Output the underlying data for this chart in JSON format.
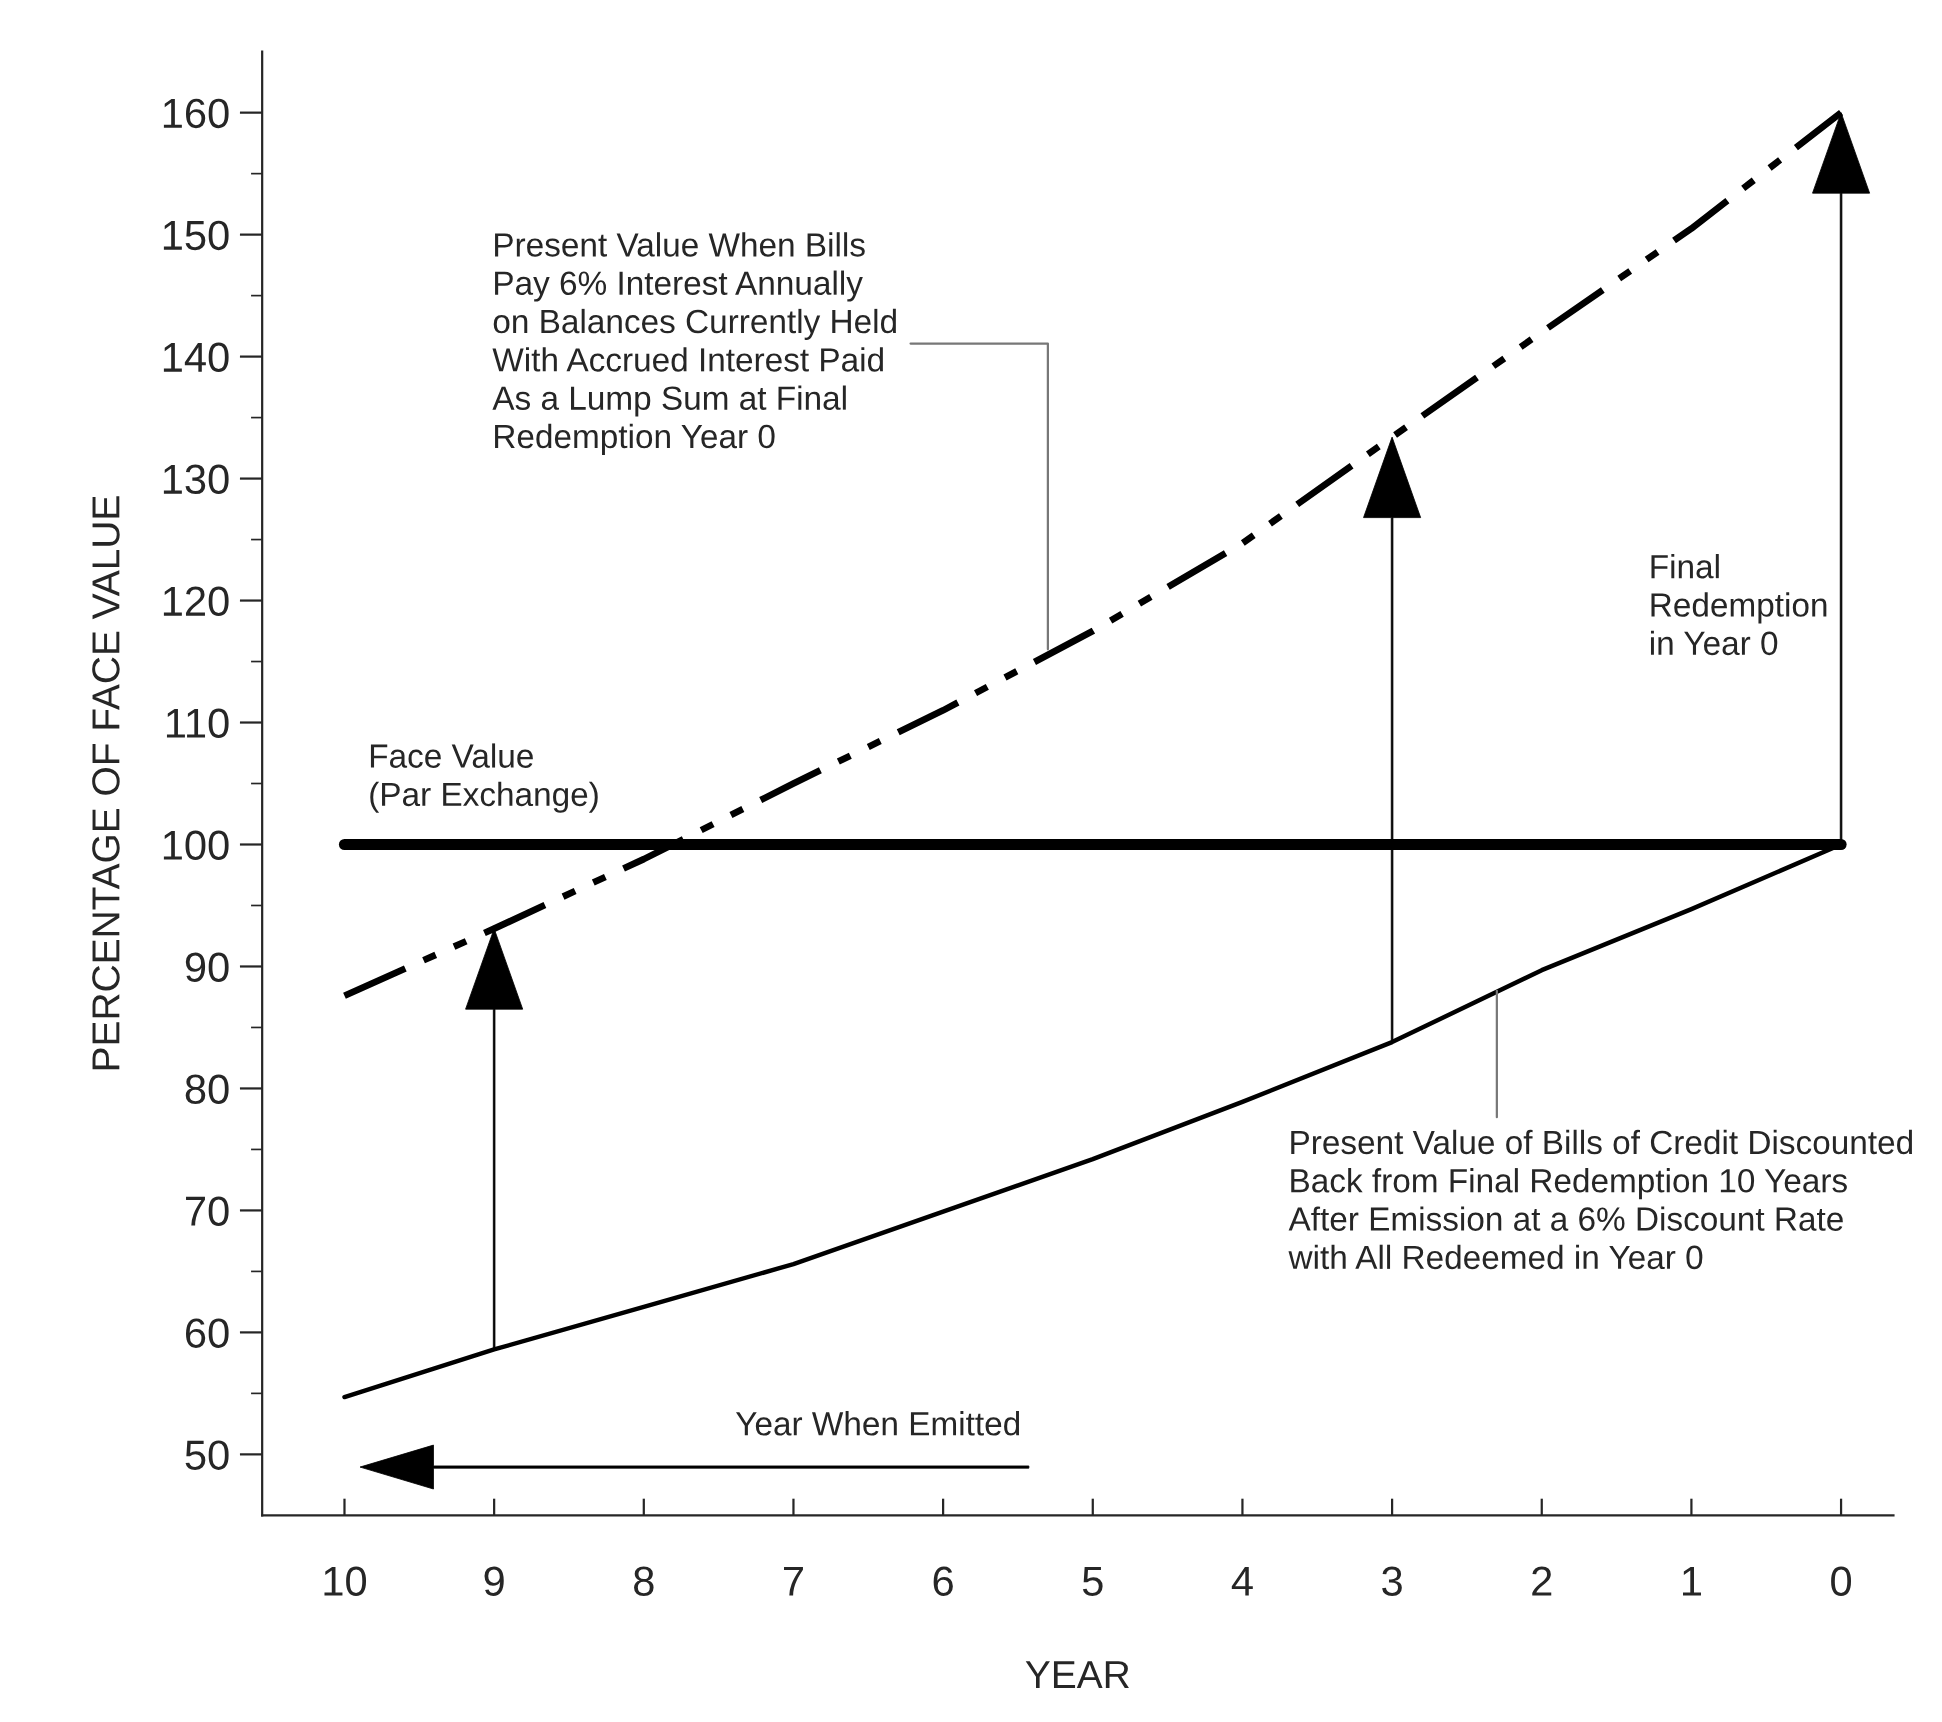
{
  "chart_data": {
    "type": "line",
    "xlabel": "YEAR",
    "ylabel": "PERCENTAGE OF FACE VALUE",
    "x": [
      10,
      9,
      8,
      7,
      6,
      5,
      4,
      3,
      2,
      1,
      0
    ],
    "series": [
      {
        "color": "#000000",
        "line_style": "solid",
        "values": [
          54.7,
          58.6,
          62.1,
          65.6,
          69.9,
          74.2,
          78.9,
          83.8,
          89.7,
          94.7,
          100
        ]
      },
      {
        "color": "#000000",
        "line_style": "dashed",
        "values": [
          87.6,
          93.1,
          98.8,
          105,
          111,
          117.5,
          124.7,
          133.4,
          142,
          150.5,
          160
        ]
      },
      {
        "color": "#000000",
        "line_style": "solid",
        "values": [
          100,
          100,
          100,
          100,
          100,
          100,
          100,
          100,
          100,
          100,
          100
        ]
      }
    ],
    "xlim": [
      10.55,
      -0.35
    ],
    "xticks": [
      10,
      9,
      8,
      7,
      6,
      5,
      4,
      3,
      2,
      1,
      0
    ],
    "ylim": [
      45,
      165
    ],
    "yticks": [
      50,
      {
        "value": 55,
        "label": null
      },
      60,
      {
        "value": 65,
        "label": null
      },
      70,
      {
        "value": 75,
        "label": null
      },
      80,
      {
        "value": 85,
        "label": null
      },
      90,
      {
        "value": 95,
        "label": null
      },
      100,
      {
        "value": 105,
        "label": null
      },
      110,
      {
        "value": 115,
        "label": null
      },
      120,
      {
        "value": 125,
        "label": null
      },
      130,
      {
        "value": 135,
        "label": null
      },
      140,
      {
        "value": 145,
        "label": null
      },
      150,
      {
        "value": 155,
        "label": null
      },
      160
    ],
    "grid": false,
    "legend": false,
    "marker": "none",
    "annotations": [
      {
        "text": "Present Value When Bills\nPay 6% Interest Annually\non Balances Currently Held\nWith Accrued Interest Paid\nAs a Lump Sum at Final\nRedemption Year 0",
        "x": 5.3,
        "y": 116
      },
      "Face Value\n(Par Exchange)",
      "Final\nRedemption\nin Year 0",
      {
        "text": "Present Value of Bills of Credit Discounted\nBack from Final Redemption 10 Years\nAfter Emission at a 6% Discount Rate\nwith All Redeemed in Year 0",
        "x": 2.3,
        "y": 88
      },
      "Year When Emitted"
    ]
  }
}
